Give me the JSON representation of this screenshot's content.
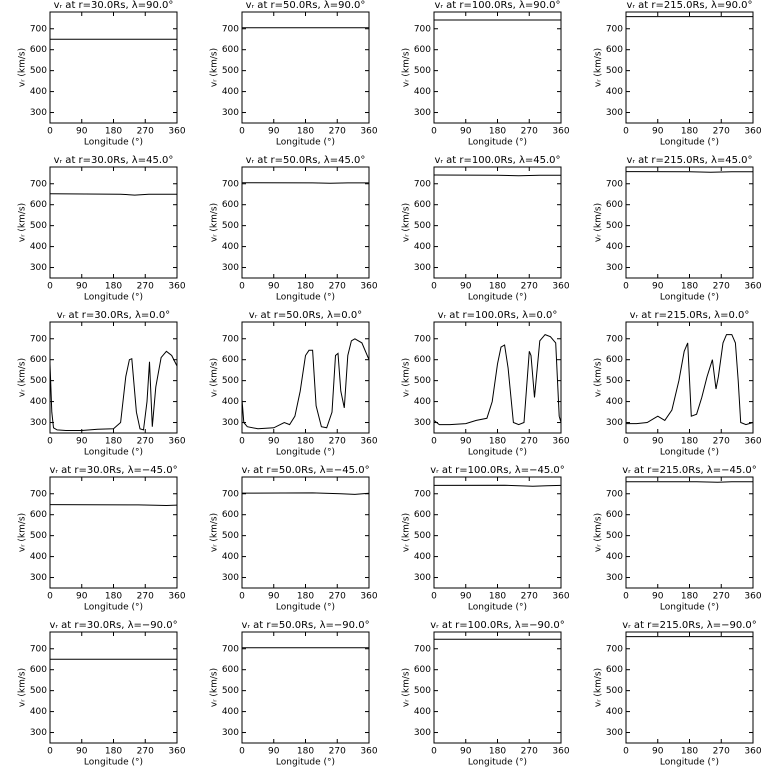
{
  "chart_data": [
    {
      "type": "line",
      "title": "vᵣ at r=30.0Rs,  λ=90.0°",
      "xlabel": "Longitude (°)",
      "ylabel": "vᵣ (km/s)",
      "x": [
        0,
        360
      ],
      "values": [
        650,
        650
      ],
      "color": "#000000",
      "xlim": [
        0,
        360
      ],
      "ylim": [
        250,
        780
      ],
      "xticks": [
        0,
        90,
        180,
        270,
        360
      ],
      "yticks": [
        300,
        400,
        500,
        600,
        700
      ]
    },
    {
      "type": "line",
      "title": "vᵣ at r=50.0Rs,  λ=90.0°",
      "xlabel": "Longitude (°)",
      "ylabel": "vᵣ (km/s)",
      "x": [
        0,
        360
      ],
      "values": [
        705,
        705
      ],
      "color": "#000000",
      "xlim": [
        0,
        360
      ],
      "ylim": [
        250,
        780
      ],
      "xticks": [
        0,
        90,
        180,
        270,
        360
      ],
      "yticks": [
        300,
        400,
        500,
        600,
        700
      ]
    },
    {
      "type": "line",
      "title": "vᵣ at r=100.0Rs,  λ=90.0°",
      "xlabel": "Longitude (°)",
      "ylabel": "vᵣ (km/s)",
      "x": [
        0,
        360
      ],
      "values": [
        742,
        742
      ],
      "color": "#000000",
      "xlim": [
        0,
        360
      ],
      "ylim": [
        250,
        780
      ],
      "xticks": [
        0,
        90,
        180,
        270,
        360
      ],
      "yticks": [
        300,
        400,
        500,
        600,
        700
      ]
    },
    {
      "type": "line",
      "title": "vᵣ at r=215.0Rs,  λ=90.0°",
      "xlabel": "Longitude (°)",
      "ylabel": "vᵣ (km/s)",
      "x": [
        0,
        360
      ],
      "values": [
        758,
        758
      ],
      "color": "#000000",
      "xlim": [
        0,
        360
      ],
      "ylim": [
        250,
        780
      ],
      "xticks": [
        0,
        90,
        180,
        270,
        360
      ],
      "yticks": [
        300,
        400,
        500,
        600,
        700
      ]
    },
    {
      "type": "line",
      "title": "vᵣ at r=30.0Rs,  λ=45.0°",
      "xlabel": "Longitude (°)",
      "ylabel": "vᵣ (km/s)",
      "x": [
        0,
        200,
        240,
        280,
        360
      ],
      "values": [
        652,
        650,
        646,
        650,
        650
      ],
      "color": "#000000",
      "xlim": [
        0,
        360
      ],
      "ylim": [
        250,
        780
      ],
      "xticks": [
        0,
        90,
        180,
        270,
        360
      ],
      "yticks": [
        300,
        400,
        500,
        600,
        700
      ]
    },
    {
      "type": "line",
      "title": "vᵣ at r=50.0Rs,  λ=45.0°",
      "xlabel": "Longitude (°)",
      "ylabel": "vᵣ (km/s)",
      "x": [
        0,
        200,
        250,
        300,
        360
      ],
      "values": [
        705,
        704,
        702,
        704,
        704
      ],
      "color": "#000000",
      "xlim": [
        0,
        360
      ],
      "ylim": [
        250,
        780
      ],
      "xticks": [
        0,
        90,
        180,
        270,
        360
      ],
      "yticks": [
        300,
        400,
        500,
        600,
        700
      ]
    },
    {
      "type": "line",
      "title": "vᵣ at r=100.0Rs,  λ=45.0°",
      "xlabel": "Longitude (°)",
      "ylabel": "vᵣ (km/s)",
      "x": [
        0,
        180,
        240,
        300,
        360
      ],
      "values": [
        742,
        741,
        738,
        741,
        741
      ],
      "color": "#000000",
      "xlim": [
        0,
        360
      ],
      "ylim": [
        250,
        780
      ],
      "xticks": [
        0,
        90,
        180,
        270,
        360
      ],
      "yticks": [
        300,
        400,
        500,
        600,
        700
      ]
    },
    {
      "type": "line",
      "title": "vᵣ at r=215.0Rs,  λ=45.0°",
      "xlabel": "Longitude (°)",
      "ylabel": "vᵣ (km/s)",
      "x": [
        0,
        180,
        240,
        300,
        360
      ],
      "values": [
        758,
        757,
        755,
        757,
        757
      ],
      "color": "#000000",
      "xlim": [
        0,
        360
      ],
      "ylim": [
        250,
        780
      ],
      "xticks": [
        0,
        90,
        180,
        270,
        360
      ],
      "yticks": [
        300,
        400,
        500,
        600,
        700
      ]
    },
    {
      "type": "line",
      "title": "vᵣ at r=30.0Rs,  λ=0.0°",
      "xlabel": "Longitude (°)",
      "ylabel": "vᵣ (km/s)",
      "x": [
        0,
        5,
        10,
        20,
        45,
        90,
        135,
        180,
        200,
        215,
        225,
        232,
        245,
        255,
        265,
        275,
        282,
        290,
        300,
        315,
        330,
        345,
        360
      ],
      "values": [
        580,
        350,
        275,
        265,
        262,
        262,
        268,
        270,
        300,
        520,
        600,
        605,
        350,
        270,
        265,
        400,
        590,
        280,
        470,
        610,
        640,
        620,
        570
      ],
      "color": "#000000",
      "xlim": [
        0,
        360
      ],
      "ylim": [
        250,
        780
      ],
      "xticks": [
        0,
        90,
        180,
        270,
        360
      ],
      "yticks": [
        300,
        400,
        500,
        600,
        700
      ]
    },
    {
      "type": "line",
      "title": "vᵣ at r=50.0Rs,  λ=0.0°",
      "xlabel": "Longitude (°)",
      "ylabel": "vᵣ (km/s)",
      "x": [
        0,
        5,
        15,
        45,
        90,
        120,
        135,
        150,
        165,
        180,
        190,
        200,
        210,
        225,
        240,
        255,
        265,
        272,
        280,
        290,
        300,
        310,
        320,
        340,
        360
      ],
      "values": [
        410,
        300,
        280,
        270,
        275,
        300,
        290,
        330,
        450,
        620,
        645,
        645,
        380,
        280,
        275,
        350,
        620,
        630,
        450,
        370,
        620,
        690,
        700,
        680,
        600
      ],
      "color": "#000000",
      "xlim": [
        0,
        360
      ],
      "ylim": [
        250,
        780
      ],
      "xticks": [
        0,
        90,
        180,
        270,
        360
      ],
      "yticks": [
        300,
        400,
        500,
        600,
        700
      ]
    },
    {
      "type": "line",
      "title": "vᵣ at r=100.0Rs,  λ=0.0°",
      "xlabel": "Longitude (°)",
      "ylabel": "vᵣ (km/s)",
      "x": [
        0,
        15,
        45,
        90,
        120,
        150,
        165,
        180,
        190,
        200,
        210,
        225,
        240,
        255,
        270,
        275,
        285,
        300,
        315,
        330,
        345,
        355,
        360
      ],
      "values": [
        310,
        290,
        290,
        295,
        310,
        320,
        400,
        580,
        660,
        670,
        560,
        300,
        290,
        300,
        640,
        620,
        420,
        690,
        720,
        710,
        680,
        330,
        300
      ],
      "color": "#000000",
      "xlim": [
        0,
        360
      ],
      "ylim": [
        250,
        780
      ],
      "xticks": [
        0,
        90,
        180,
        270,
        360
      ],
      "yticks": [
        300,
        400,
        500,
        600,
        700
      ]
    },
    {
      "type": "line",
      "title": "vᵣ at r=215.0Rs,  λ=0.0°",
      "xlabel": "Longitude (°)",
      "ylabel": "vᵣ (km/s)",
      "x": [
        0,
        30,
        60,
        80,
        90,
        110,
        130,
        150,
        165,
        175,
        185,
        200,
        215,
        230,
        245,
        255,
        262,
        275,
        285,
        300,
        310,
        318,
        325,
        340,
        360
      ],
      "values": [
        295,
        295,
        300,
        320,
        330,
        310,
        360,
        500,
        640,
        680,
        330,
        340,
        420,
        520,
        600,
        460,
        520,
        680,
        720,
        720,
        680,
        500,
        300,
        290,
        300
      ],
      "color": "#000000",
      "xlim": [
        0,
        360
      ],
      "ylim": [
        250,
        780
      ],
      "xticks": [
        0,
        90,
        180,
        270,
        360
      ],
      "yticks": [
        300,
        400,
        500,
        600,
        700
      ]
    },
    {
      "type": "line",
      "title": "vᵣ at r=30.0Rs,  λ=−45.0°",
      "xlabel": "Longitude (°)",
      "ylabel": "vᵣ (km/s)",
      "x": [
        0,
        250,
        300,
        330,
        360
      ],
      "values": [
        648,
        647,
        645,
        644,
        646
      ],
      "color": "#000000",
      "xlim": [
        0,
        360
      ],
      "ylim": [
        250,
        780
      ],
      "xticks": [
        0,
        90,
        180,
        270,
        360
      ],
      "yticks": [
        300,
        400,
        500,
        600,
        700
      ]
    },
    {
      "type": "line",
      "title": "vᵣ at r=50.0Rs,  λ=−45.0°",
      "xlabel": "Longitude (°)",
      "ylabel": "vᵣ (km/s)",
      "x": [
        0,
        200,
        280,
        320,
        360
      ],
      "values": [
        703,
        704,
        700,
        697,
        702
      ],
      "color": "#000000",
      "xlim": [
        0,
        360
      ],
      "ylim": [
        250,
        780
      ],
      "xticks": [
        0,
        90,
        180,
        270,
        360
      ],
      "yticks": [
        300,
        400,
        500,
        600,
        700
      ]
    },
    {
      "type": "line",
      "title": "vᵣ at r=100.0Rs,  λ=−45.0°",
      "xlabel": "Longitude (°)",
      "ylabel": "vᵣ (km/s)",
      "x": [
        0,
        200,
        280,
        320,
        360
      ],
      "values": [
        740,
        741,
        736,
        738,
        740
      ],
      "color": "#000000",
      "xlim": [
        0,
        360
      ],
      "ylim": [
        250,
        780
      ],
      "xticks": [
        0,
        90,
        180,
        270,
        360
      ],
      "yticks": [
        300,
        400,
        500,
        600,
        700
      ]
    },
    {
      "type": "line",
      "title": "vᵣ at r=215.0Rs,  λ=−45.0°",
      "xlabel": "Longitude (°)",
      "ylabel": "vᵣ (km/s)",
      "x": [
        0,
        200,
        260,
        300,
        360
      ],
      "values": [
        757,
        757,
        755,
        757,
        757
      ],
      "color": "#000000",
      "xlim": [
        0,
        360
      ],
      "ylim": [
        250,
        780
      ],
      "xticks": [
        0,
        90,
        180,
        270,
        360
      ],
      "yticks": [
        300,
        400,
        500,
        600,
        700
      ]
    },
    {
      "type": "line",
      "title": "vᵣ at r=30.0Rs,  λ=−90.0°",
      "xlabel": "Longitude (°)",
      "ylabel": "vᵣ (km/s)",
      "x": [
        0,
        360
      ],
      "values": [
        650,
        650
      ],
      "color": "#000000",
      "xlim": [
        0,
        360
      ],
      "ylim": [
        250,
        780
      ],
      "xticks": [
        0,
        90,
        180,
        270,
        360
      ],
      "yticks": [
        300,
        400,
        500,
        600,
        700
      ]
    },
    {
      "type": "line",
      "title": "vᵣ at r=50.0Rs,  λ=−90.0°",
      "xlabel": "Longitude (°)",
      "ylabel": "vᵣ (km/s)",
      "x": [
        0,
        360
      ],
      "values": [
        705,
        705
      ],
      "color": "#000000",
      "xlim": [
        0,
        360
      ],
      "ylim": [
        250,
        780
      ],
      "xticks": [
        0,
        90,
        180,
        270,
        360
      ],
      "yticks": [
        300,
        400,
        500,
        600,
        700
      ]
    },
    {
      "type": "line",
      "title": "vᵣ at r=100.0Rs,  λ=−90.0°",
      "xlabel": "Longitude (°)",
      "ylabel": "vᵣ (km/s)",
      "x": [
        0,
        360
      ],
      "values": [
        745,
        745
      ],
      "color": "#000000",
      "xlim": [
        0,
        360
      ],
      "ylim": [
        250,
        780
      ],
      "xticks": [
        0,
        90,
        180,
        270,
        360
      ],
      "yticks": [
        300,
        400,
        500,
        600,
        700
      ]
    },
    {
      "type": "line",
      "title": "vᵣ at r=215.0Rs,  λ=−90.0°",
      "xlabel": "Longitude (°)",
      "ylabel": "vᵣ (km/s)",
      "x": [
        0,
        360
      ],
      "values": [
        758,
        758
      ],
      "color": "#000000",
      "xlim": [
        0,
        360
      ],
      "ylim": [
        250,
        780
      ],
      "xticks": [
        0,
        90,
        180,
        270,
        360
      ],
      "yticks": [
        300,
        400,
        500,
        600,
        700
      ]
    }
  ]
}
